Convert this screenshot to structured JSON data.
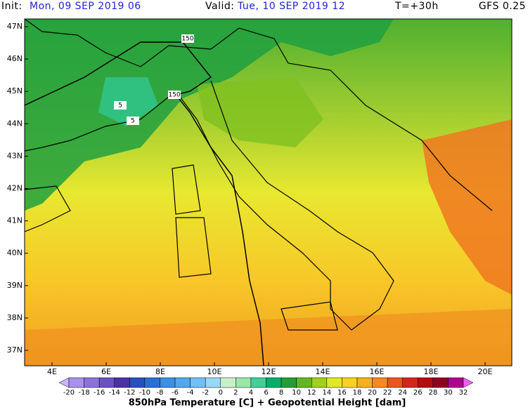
{
  "header": {
    "init_label": "Init:",
    "init_time": "Mon, 09 SEP 2019  06",
    "valid_label": "Valid:",
    "valid_time": "Tue, 10 SEP 2019  12",
    "forecast_step": "T=+30h",
    "model": "GFS 0.25"
  },
  "map": {
    "lat_labels": [
      "47N",
      "46N",
      "45N",
      "44N",
      "43N",
      "42N",
      "41N",
      "40N",
      "39N",
      "38N",
      "37N"
    ],
    "lon_labels": [
      "4E",
      "6E",
      "8E",
      "10E",
      "12E",
      "14E",
      "16E",
      "18E",
      "20E"
    ],
    "contour_labels": [
      "150",
      "150",
      "5",
      "5"
    ]
  },
  "colorbar": {
    "labels": [
      "-20",
      "-18",
      "-16",
      "-14",
      "-12",
      "-10",
      "-8",
      "-6",
      "-4",
      "-2",
      "0",
      "2",
      "4",
      "6",
      "8",
      "10",
      "12",
      "14",
      "16",
      "18",
      "20",
      "22",
      "24",
      "26",
      "28",
      "30",
      "32"
    ],
    "title": "850hPa Temperature [C] + Geopotential Height [dam]"
  }
}
